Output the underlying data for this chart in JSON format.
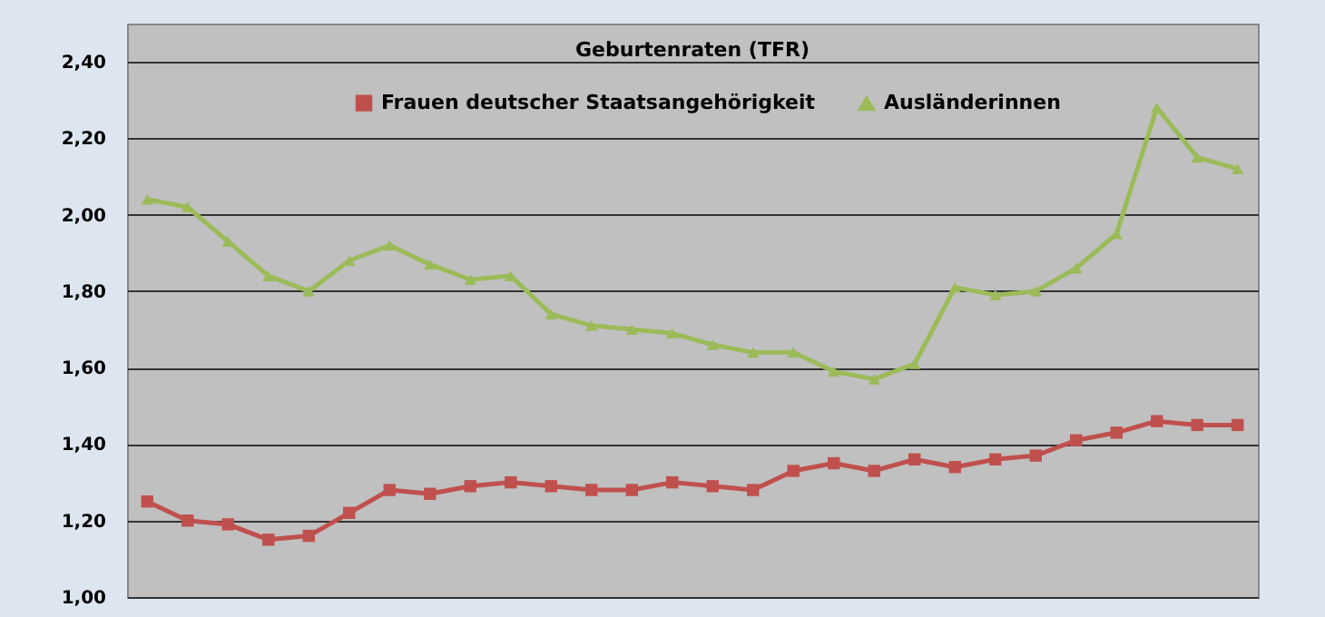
{
  "chart_data": {
    "type": "line",
    "title": "Geburtenraten (TFR)",
    "categories": [
      null,
      null,
      null,
      null,
      null,
      null,
      null,
      null,
      null,
      null,
      null,
      null,
      null,
      null,
      null,
      null,
      null,
      null,
      null,
      null,
      null,
      null,
      null,
      null,
      null,
      null,
      null,
      null
    ],
    "series": [
      {
        "name": "Frauen deutscher Staatsangehörigkeit",
        "color": "#c0504d",
        "marker": "square",
        "values": [
          1.25,
          1.2,
          1.19,
          1.15,
          1.16,
          1.22,
          1.28,
          1.27,
          1.29,
          1.3,
          1.29,
          1.28,
          1.28,
          1.3,
          1.29,
          1.28,
          1.33,
          1.35,
          1.33,
          1.36,
          1.34,
          1.36,
          1.37,
          1.41,
          1.43,
          1.46,
          1.45,
          1.45
        ]
      },
      {
        "name": "Ausländerinnen",
        "color": "#9bbb59",
        "marker": "triangle",
        "values": [
          2.04,
          2.02,
          1.93,
          1.84,
          1.8,
          1.88,
          1.92,
          1.87,
          1.83,
          1.84,
          1.74,
          1.71,
          1.7,
          1.69,
          1.66,
          1.64,
          1.64,
          1.59,
          1.57,
          1.61,
          1.81,
          1.79,
          1.8,
          1.86,
          1.95,
          2.28,
          2.15,
          2.12
        ]
      }
    ],
    "ylim": [
      1.0,
      2.5
    ],
    "yticks": [
      {
        "value": 1.0,
        "label": "1,00"
      },
      {
        "value": 1.2,
        "label": "1,20"
      },
      {
        "value": 1.4,
        "label": "1,40"
      },
      {
        "value": 1.6,
        "label": "1,60"
      },
      {
        "value": 1.8,
        "label": "1,80"
      },
      {
        "value": 2.0,
        "label": "2,00"
      },
      {
        "value": 2.2,
        "label": "2,20"
      },
      {
        "value": 2.4,
        "label": "2,40"
      }
    ],
    "grid": "y",
    "legend": "top",
    "tick_labels": "y",
    "line_style": "solid"
  }
}
